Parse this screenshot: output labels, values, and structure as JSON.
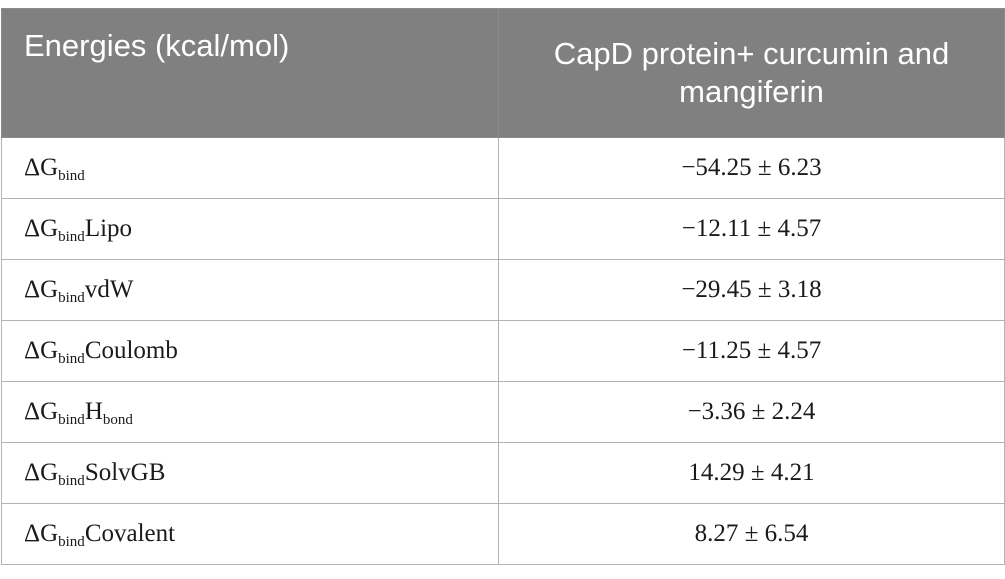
{
  "table": {
    "headers": [
      "Energies (kcal/mol)",
      "CapD protein+ curcumin and mangiferin"
    ],
    "rows": [
      {
        "symbol": "ΔG",
        "sub1": "bind",
        "suffix": "",
        "sub2": "",
        "value": "−54.25 ± 6.23"
      },
      {
        "symbol": "ΔG",
        "sub1": "bind",
        "suffix": "Lipo",
        "sub2": "",
        "value": "−12.11 ± 4.57"
      },
      {
        "symbol": "ΔG",
        "sub1": "bind",
        "suffix": "vdW",
        "sub2": "",
        "value": "−29.45 ± 3.18"
      },
      {
        "symbol": "ΔG",
        "sub1": "bind",
        "suffix": "Coulomb",
        "sub2": "",
        "value": "−11.25 ± 4.57"
      },
      {
        "symbol": "ΔG",
        "sub1": "bind",
        "suffix": "H",
        "sub2": "bond",
        "value": "−3.36 ± 2.24"
      },
      {
        "symbol": "ΔG",
        "sub1": "bind",
        "suffix": "SolvGB",
        "sub2": "",
        "value": "14.29 ± 4.21"
      },
      {
        "symbol": "ΔG",
        "sub1": "bind",
        "suffix": "Covalent",
        "sub2": "",
        "value": "8.27 ± 6.54"
      }
    ]
  }
}
